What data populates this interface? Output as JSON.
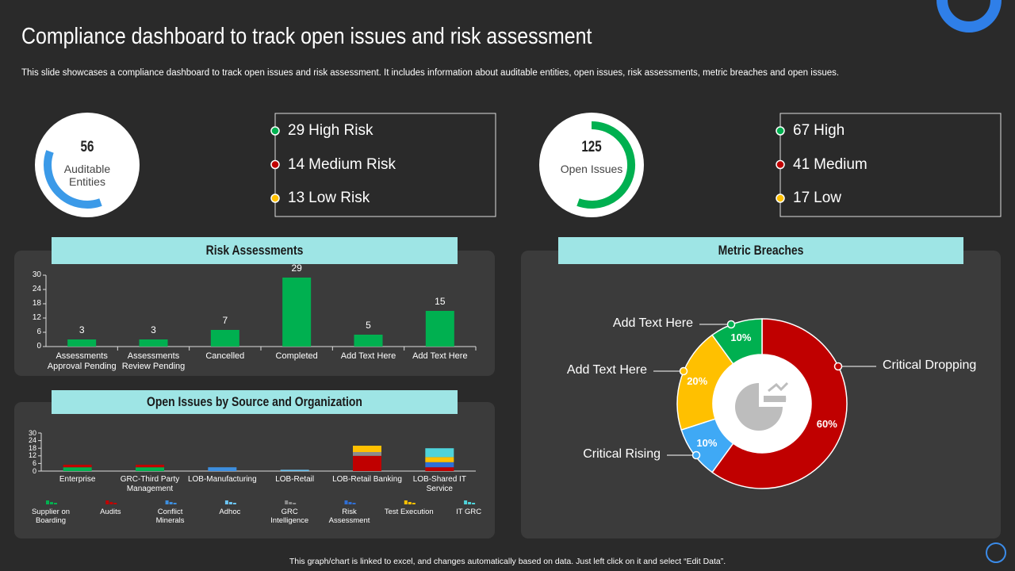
{
  "header": {
    "title": "Compliance dashboard to track open issues and risk assessment",
    "subtitle": "This slide showcases a compliance dashboard to track open issues and risk assessment. It includes information about auditable entities, open issues, risk assessments, metric breaches and open issues."
  },
  "kpis": [
    {
      "value": 56,
      "label": "Auditable Entities",
      "items": [
        {
          "value": 29,
          "label": "High Risk",
          "color": "#00b050"
        },
        {
          "value": 14,
          "label": "Medium Risk",
          "color": "#c00000"
        },
        {
          "value": 13,
          "label": "Low Risk",
          "color": "#ffc000"
        }
      ]
    },
    {
      "value": 125,
      "label": "Open Issues",
      "items": [
        {
          "value": 67,
          "label": "High",
          "color": "#00b050"
        },
        {
          "value": 41,
          "label": "Medium",
          "color": "#c00000"
        },
        {
          "value": 17,
          "label": "Low",
          "color": "#ffc000"
        }
      ]
    }
  ],
  "chart_data": [
    {
      "type": "bar",
      "title": "Risk Assessments",
      "categories": [
        "Assessments Approval Pending",
        "Assessments Review Pending",
        "Cancelled",
        "Completed",
        "Add Text Here",
        "Add Text Here"
      ],
      "values": [
        3,
        3,
        7,
        29,
        5,
        15
      ],
      "color": "#00b050",
      "ylim": [
        0,
        30
      ],
      "yticks": [
        0,
        6,
        12,
        18,
        24,
        30
      ]
    },
    {
      "type": "stacked_bar",
      "title": "Open Issues by Source and Organization",
      "categories": [
        "Enterprise",
        "GRC-Third Party Management",
        "LOB-Manufacturing",
        "LOB-Retail",
        "LOB-Retail Banking",
        "LOB-Shared IT Service"
      ],
      "series": [
        {
          "name": "Supplier on Boarding",
          "color": "#00b050",
          "values": [
            3,
            3,
            0,
            0,
            0,
            0
          ]
        },
        {
          "name": "Audits",
          "color": "#c00000",
          "values": [
            2,
            2,
            0,
            0,
            12,
            3
          ]
        },
        {
          "name": "Conflict Minerals",
          "color": "#3d8fe0",
          "values": [
            0,
            0,
            3,
            0,
            0,
            0
          ]
        },
        {
          "name": "Adhoc",
          "color": "#6cc4f2",
          "values": [
            0,
            0,
            0,
            1,
            0,
            0
          ]
        },
        {
          "name": "GRC Intelligence",
          "color": "#8c8c8c",
          "values": [
            0,
            0,
            0,
            0,
            3,
            0
          ]
        },
        {
          "name": "Risk Assessment",
          "color": "#2f6fd6",
          "values": [
            0,
            0,
            0,
            0,
            0,
            4
          ]
        },
        {
          "name": "Test Execution",
          "color": "#ffc000",
          "values": [
            0,
            0,
            0,
            0,
            5,
            4
          ]
        },
        {
          "name": "IT GRC",
          "color": "#4fd3da",
          "values": [
            0,
            0,
            0,
            0,
            0,
            7
          ]
        }
      ],
      "ylim": [
        0,
        30
      ],
      "yticks": [
        0,
        6,
        12,
        18,
        24,
        30
      ]
    },
    {
      "type": "donut",
      "title": "Metric Breaches",
      "categories": [
        "Critical Dropping",
        "Critical Rising",
        "Add Text Here",
        "Add Text Here"
      ],
      "values": [
        60,
        10,
        20,
        10
      ],
      "value_labels": [
        "60%",
        "10%",
        "20%",
        "10%"
      ],
      "colors": [
        "#c00000",
        "#3fa9f5",
        "#ffc000",
        "#00b050"
      ]
    }
  ],
  "footer": "This graph/chart is linked to excel, and changes automatically based on data. Just left click on it and select “Edit Data”."
}
